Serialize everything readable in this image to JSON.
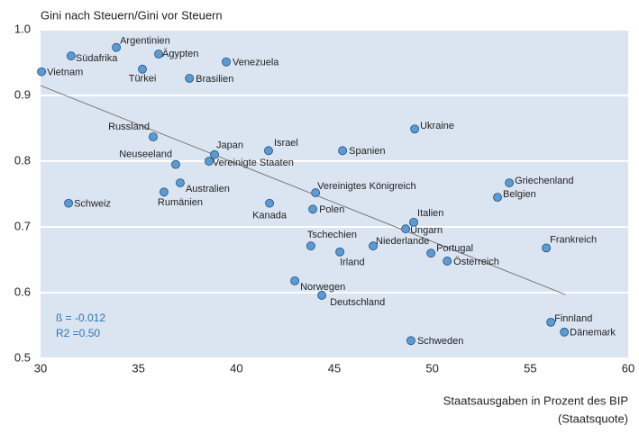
{
  "chart_data": {
    "type": "scatter",
    "title": "Gini nach Steuern/Gini vor Steuern",
    "x_label": [
      "Staatsausgaben in Prozent des BIP",
      "(Staatsquote)"
    ],
    "annotations": [
      "ß = -0.012",
      "R2 =0.50"
    ],
    "xlim": [
      30,
      60
    ],
    "xticks": [
      30,
      35,
      40,
      45,
      50,
      55,
      60
    ],
    "ylim": [
      0.5,
      1.0
    ],
    "yticks": [
      {
        "value": 0.5,
        "label": "0.5"
      },
      {
        "value": 0.6,
        "label": "0.6"
      },
      {
        "value": 0.7,
        "label": "0.7"
      },
      {
        "value": 0.8,
        "label": "0.8"
      },
      {
        "value": 0.9,
        "label": "0.9"
      },
      {
        "value": 1.0,
        "label": "1.0"
      }
    ],
    "grid": true,
    "color": "#5b9bd5",
    "labels": [
      "Argentinien",
      "Südafrika",
      "Ägypten",
      "Venezuela",
      "Vietnam",
      "Türkei",
      "Brasilien",
      "Ukraine",
      "Russland",
      "Israel",
      "Japan",
      "Spanien",
      "Neuseeland",
      "Vereinigte Staaten",
      "Griechenland",
      "Australien",
      "Belgien",
      "Rumänien",
      "Vereinigtes Königreich",
      "Schweiz",
      "Kanada",
      "Polen",
      "Italien",
      "Ungarn",
      "Frankreich",
      "Tschechien",
      "Niederlande",
      "Portugal",
      "Irland",
      "Österreich",
      "Norwegen",
      "Deutschland",
      "Finnland",
      "Dänemark",
      "Schweden"
    ],
    "x": [
      33.87,
      31.56,
      36.03,
      39.48,
      30.05,
      35.2,
      37.6,
      49.1,
      35.75,
      41.64,
      38.88,
      45.42,
      36.9,
      38.6,
      53.93,
      37.13,
      53.33,
      36.3,
      44.04,
      31.43,
      41.69,
      43.9,
      49.05,
      48.64,
      55.82,
      43.8,
      46.98,
      49.93,
      45.28,
      50.76,
      42.98,
      44.36,
      56.05,
      56.74,
      48.91
    ],
    "y": [
      0.973,
      0.96,
      0.963,
      0.951,
      0.936,
      0.94,
      0.926,
      0.849,
      0.837,
      0.816,
      0.81,
      0.816,
      0.795,
      0.8,
      0.767,
      0.767,
      0.745,
      0.753,
      0.752,
      0.736,
      0.736,
      0.727,
      0.707,
      0.697,
      0.668,
      0.671,
      0.671,
      0.66,
      0.662,
      0.648,
      0.618,
      0.596,
      0.555,
      0.54,
      0.527
    ],
    "trendline": {
      "x": [
        30,
        56.8
      ],
      "y": [
        0.915,
        0.597
      ],
      "color": "#777777"
    }
  }
}
